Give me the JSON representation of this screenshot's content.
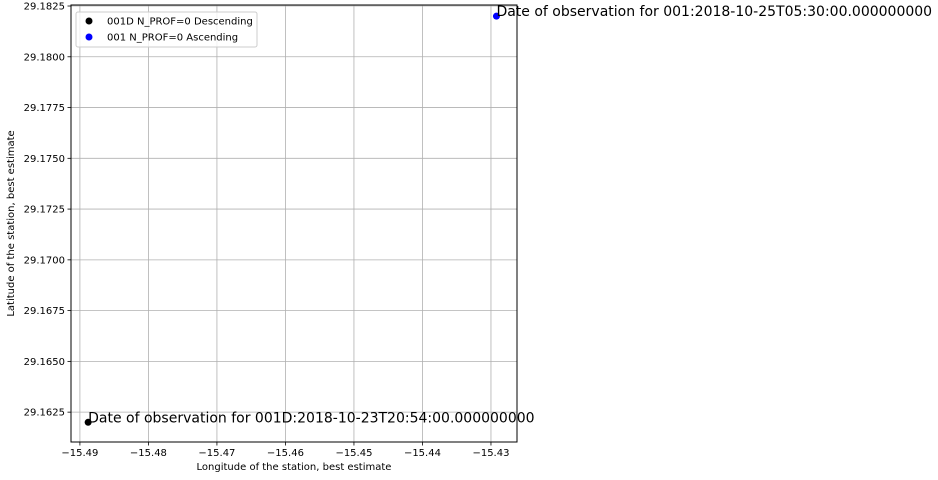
{
  "chart_data": {
    "type": "scatter",
    "xlabel": "Longitude of the station, best estimate",
    "ylabel": "Latitude of the station, best estimate",
    "xlim": [
      -15.4913,
      -15.4262
    ],
    "ylim": [
      29.16103,
      29.18255
    ],
    "x_ticks": [
      -15.49,
      -15.48,
      -15.47,
      -15.46,
      -15.45,
      -15.44,
      -15.43
    ],
    "x_tick_labels": [
      "−15.49",
      "−15.48",
      "−15.47",
      "−15.46",
      "−15.45",
      "−15.44",
      "−15.43"
    ],
    "y_ticks": [
      29.1625,
      29.165,
      29.1675,
      29.17,
      29.1725,
      29.175,
      29.1775,
      29.18,
      29.1825
    ],
    "y_tick_labels": [
      "29.1625",
      "29.1650",
      "29.1675",
      "29.1700",
      "29.1725",
      "29.1750",
      "29.1775",
      "29.1800",
      "29.1825"
    ],
    "grid": true,
    "legend_position": "top-left",
    "series": [
      {
        "name": "001D N_PROF=0 Descending",
        "color": "#000000",
        "points": [
          {
            "x": -15.4888,
            "y": 29.162
          }
        ],
        "annotation": "Date of observation for 001D:2018-10-23T20:54:00.000000000"
      },
      {
        "name": "001 N_PROF=0 Ascending",
        "color": "#0000ff",
        "points": [
          {
            "x": -15.4292,
            "y": 29.182
          }
        ],
        "annotation": "Date of observation for 001:2018-10-25T05:30:00.000000000"
      }
    ]
  }
}
